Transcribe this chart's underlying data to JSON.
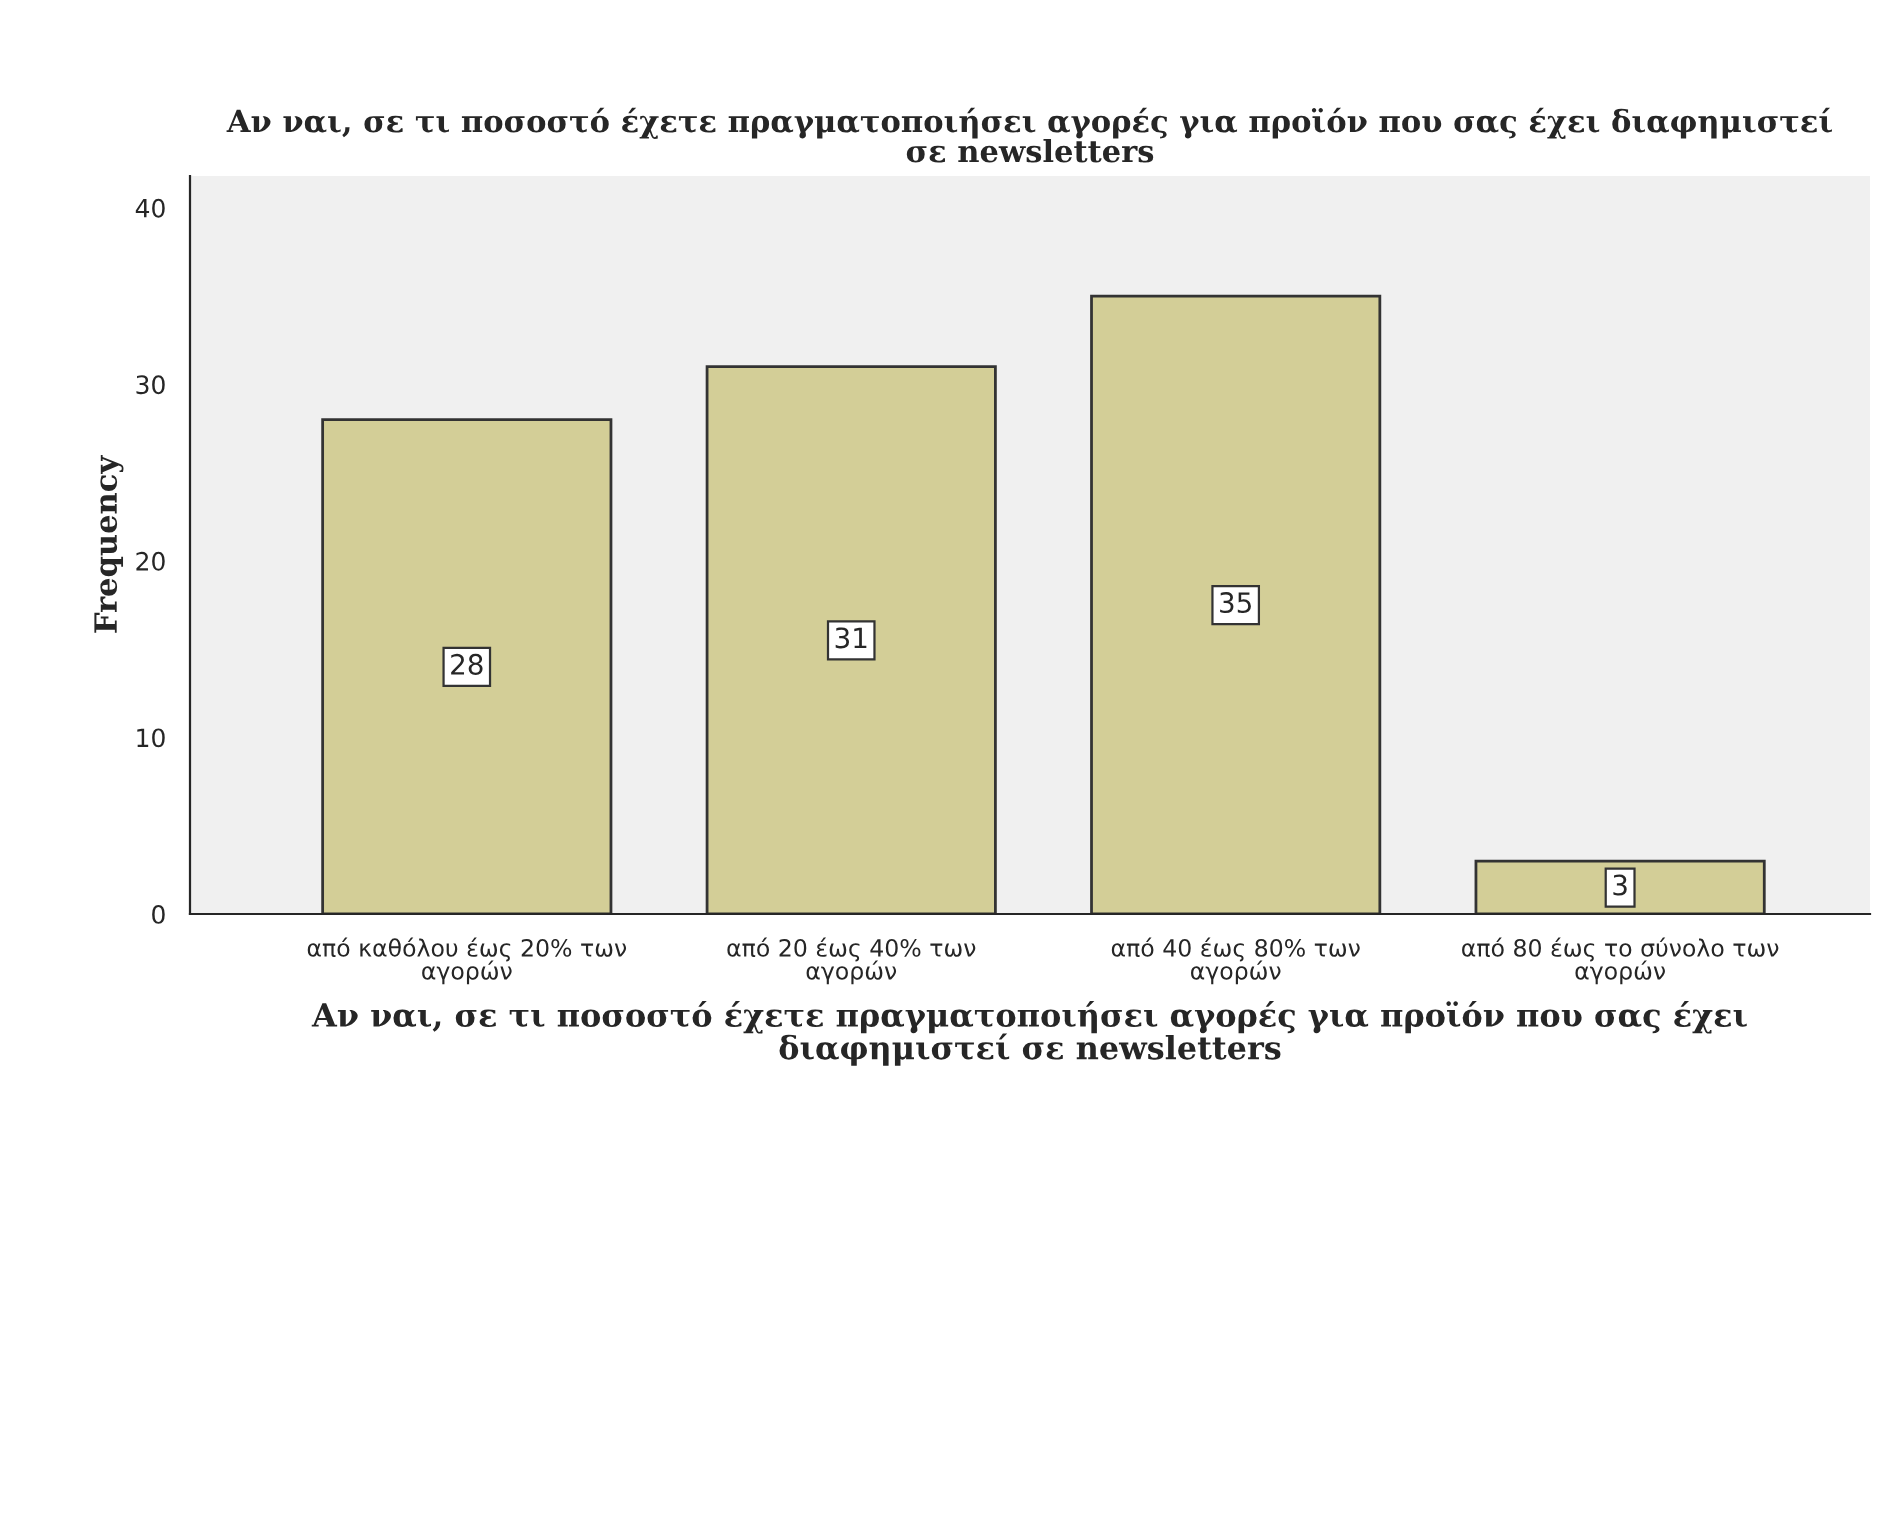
{
  "chart_data": {
    "type": "bar",
    "title": "Αν ναι, σε τι ποσοστό έχετε πραγματοποιήσει αγορές για προϊόν που σας έχει διαφημιστεί\nσε newsletters",
    "xlabel": "Αν ναι, σε τι ποσοστό έχετε πραγματοποιήσει αγορές για προϊόν που σας έχει\nδιαφημιστεί σε newsletters",
    "ylabel": "Frequency",
    "categories": [
      "από καθόλου έως 20% των\nαγορών",
      "από 20 έως 40% των\nαγορών",
      "από 40 έως 80% των\nαγορών",
      "από 80 έως το σύνολο των\nαγορών"
    ],
    "values": [
      28,
      31,
      35,
      3
    ],
    "color": "#d3ce97",
    "ylim": [
      0,
      41.8
    ],
    "yticks": [
      0,
      10,
      20,
      30,
      40
    ],
    "grid": false,
    "data_labels": true
  }
}
